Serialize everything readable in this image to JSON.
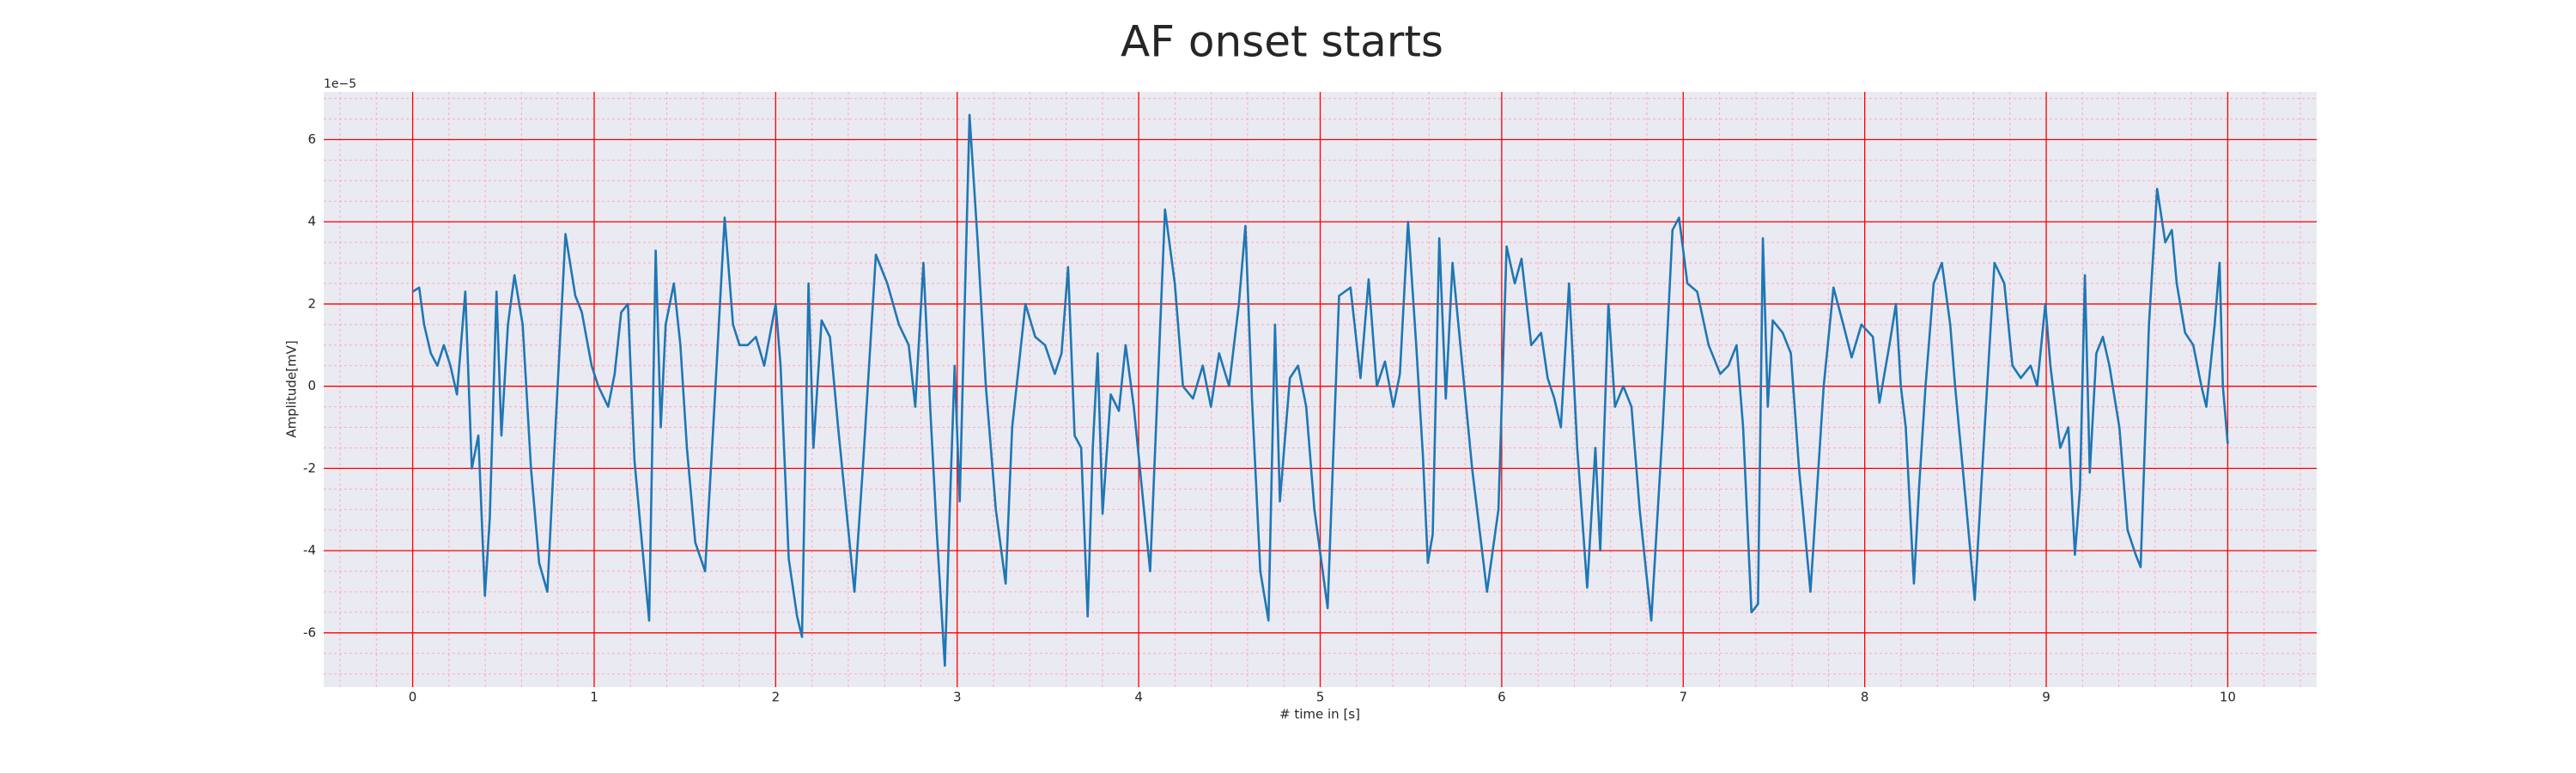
{
  "chart_data": {
    "type": "line",
    "title": "AF onset starts",
    "x_label": "# time in [s]",
    "y_label": "Amplitude[mV]",
    "y_offset_label": "1e−5",
    "xlim": [
      -0.49,
      10.49
    ],
    "ylim": [
      -7.32,
      7.16
    ],
    "xticks": [
      0,
      1,
      2,
      3,
      4,
      5,
      6,
      7,
      8,
      9,
      10
    ],
    "yticks": [
      -6,
      -4,
      -2,
      0,
      2,
      4,
      6
    ],
    "x_minor_ticks": [
      -0.4,
      -0.2,
      0,
      0.2,
      0.4,
      0.6,
      0.8,
      1,
      1.2,
      1.4,
      1.6,
      1.8,
      2,
      2.2,
      2.4,
      2.6,
      2.8,
      3,
      3.2,
      3.4,
      3.6,
      3.8,
      4,
      4.2,
      4.4,
      4.6,
      4.8,
      5,
      5.2,
      5.4,
      5.6,
      5.8,
      6,
      6.2,
      6.4,
      6.6,
      6.8,
      7,
      7.2,
      7.4,
      7.6,
      7.8,
      8,
      8.2,
      8.4,
      8.6,
      8.8,
      9,
      9.2,
      9.4,
      9.6,
      9.8,
      10,
      10.2,
      10.4
    ],
    "y_minor_ticks": [
      -7,
      -6.5,
      -6,
      -5.5,
      -5,
      -4.5,
      -4,
      -3.5,
      -3,
      -2.5,
      -2,
      -1.5,
      -1,
      -0.5,
      0,
      0.5,
      1,
      1.5,
      2,
      2.5,
      3,
      3.5,
      4,
      4.5,
      5,
      5.5,
      6,
      6.5,
      7
    ],
    "grid": true,
    "background": "#eaeaf2",
    "grid_color": "#ff0000",
    "minor_grid_color": "#ffaabb",
    "x": [
      0,
      0.036,
      0.063,
      0.1,
      0.136,
      0.172,
      0.208,
      0.244,
      0.29,
      0.326,
      0.362,
      0.398,
      0.425,
      0.462,
      0.489,
      0.525,
      0.561,
      0.606,
      0.652,
      0.697,
      0.742,
      0.787,
      0.842,
      0.896,
      0.932,
      0.986,
      1.023,
      1.077,
      1.113,
      1.149,
      1.186,
      1.222,
      1.267,
      1.303,
      1.339,
      1.367,
      1.394,
      1.439,
      1.475,
      1.511,
      1.557,
      1.611,
      1.656,
      1.719,
      1.765,
      1.801,
      1.846,
      1.891,
      1.937,
      2.0,
      2.027,
      2.072,
      2.118,
      2.145,
      2.181,
      2.208,
      2.253,
      2.299,
      2.344,
      2.389,
      2.434,
      2.48,
      2.552,
      2.615,
      2.679,
      2.733,
      2.769,
      2.814,
      2.851,
      2.887,
      2.932,
      2.959,
      2.986,
      3.014,
      3.068,
      3.113,
      3.158,
      3.213,
      3.267,
      3.303,
      3.376,
      3.43,
      3.484,
      3.538,
      3.575,
      3.611,
      3.647,
      3.683,
      3.719,
      3.747,
      3.774,
      3.801,
      3.846,
      3.891,
      3.928,
      3.973,
      4.018,
      4.063,
      4.145,
      4.199,
      4.244,
      4.299,
      4.353,
      4.398,
      4.443,
      4.498,
      4.552,
      4.588,
      4.624,
      4.67,
      4.715,
      4.751,
      4.778,
      4.833,
      4.878,
      4.923,
      4.968,
      5.041,
      5.104,
      5.167,
      5.222,
      5.267,
      5.312,
      5.357,
      5.403,
      5.439,
      5.484,
      5.529,
      5.566,
      5.593,
      5.62,
      5.656,
      5.692,
      5.729,
      5.783,
      5.837,
      5.919,
      5.982,
      6.027,
      6.072,
      6.109,
      6.163,
      6.217,
      6.253,
      6.29,
      6.326,
      6.371,
      6.416,
      6.471,
      6.516,
      6.543,
      6.588,
      6.624,
      6.67,
      6.715,
      6.76,
      6.824,
      6.887,
      6.941,
      6.977,
      7.023,
      7.077,
      7.14,
      7.204,
      7.249,
      7.294,
      7.33,
      7.376,
      7.412,
      7.439,
      7.466,
      7.493,
      7.548,
      7.593,
      7.638,
      7.701,
      7.774,
      7.828,
      7.882,
      7.928,
      7.982,
      8.045,
      8.081,
      8.136,
      8.172,
      8.199,
      8.226,
      8.271,
      8.299,
      8.335,
      8.38,
      8.425,
      8.471,
      8.498,
      8.561,
      8.606,
      8.661,
      8.715,
      8.769,
      8.814,
      8.86,
      8.914,
      8.95,
      8.995,
      9.023,
      9.077,
      9.122,
      9.158,
      9.186,
      9.213,
      9.24,
      9.276,
      9.312,
      9.348,
      9.403,
      9.448,
      9.493,
      9.52,
      9.566,
      9.611,
      9.656,
      9.692,
      9.719,
      9.765,
      9.81,
      9.855,
      9.882,
      9.928,
      9.955,
      9.973,
      10.0
    ],
    "series": [
      {
        "color": "#1f77b4",
        "values": [
          2.3,
          2.4,
          1.5,
          0.8,
          0.5,
          1.0,
          0.5,
          -0.2,
          2.3,
          -2.0,
          -1.2,
          -5.1,
          -3.2,
          2.3,
          -1.2,
          1.5,
          2.7,
          1.5,
          -2,
          -4.3,
          -5.0,
          -1,
          3.7,
          2.2,
          1.8,
          0.5,
          0.0,
          -0.5,
          0.3,
          1.8,
          2.0,
          -1.8,
          -4,
          -5.7,
          3.3,
          -1,
          1.5,
          2.5,
          1.0,
          -1.5,
          -3.8,
          -4.5,
          -1.0,
          4.1,
          1.5,
          1.0,
          1.0,
          1.2,
          0.5,
          2.0,
          0.5,
          -4.2,
          -5.6,
          -6.1,
          2.5,
          -1.5,
          1.6,
          1.2,
          -1,
          -3,
          -5.0,
          -2,
          3.2,
          2.5,
          1.5,
          1.0,
          -0.5,
          3.0,
          -0.5,
          -3.5,
          -6.8,
          -3,
          0.5,
          -2.8,
          6.6,
          3.5,
          0,
          -3,
          -4.8,
          -1,
          2.0,
          1.2,
          1.0,
          0.3,
          0.8,
          2.9,
          -1.2,
          -1.5,
          -5.6,
          -1.5,
          0.8,
          -3.1,
          -0.2,
          -0.6,
          1.0,
          -0.5,
          -2.5,
          -4.5,
          4.3,
          2.5,
          0.0,
          -0.3,
          0.5,
          -0.5,
          0.8,
          0.0,
          2.0,
          3.9,
          -0.3,
          -4.5,
          -5.7,
          1.5,
          -2.8,
          0.2,
          0.5,
          -0.5,
          -3,
          -5.4,
          2.2,
          2.4,
          0.2,
          2.6,
          0,
          0.6,
          -0.5,
          0.3,
          4.0,
          1.0,
          -1.7,
          -4.3,
          -3.6,
          3.6,
          -0.3,
          3.0,
          0.5,
          -2,
          -5.0,
          -3,
          3.4,
          2.5,
          3.1,
          1.0,
          1.3,
          0.2,
          -0.3,
          -1.0,
          2.5,
          -1.5,
          -4.9,
          -1.5,
          -4.0,
          2.0,
          -0.5,
          0.0,
          -0.5,
          -3,
          -5.7,
          -1,
          3.8,
          4.1,
          2.5,
          2.3,
          1.0,
          0.3,
          0.5,
          1.0,
          -1.0,
          -5.5,
          -5.3,
          3.6,
          -0.5,
          1.6,
          1.3,
          0.8,
          -2,
          -5.0,
          0,
          2.4,
          1.5,
          0.7,
          1.5,
          1.2,
          -0.4,
          1.0,
          2.0,
          0.0,
          -1.0,
          -4.8,
          -2.5,
          0,
          2.5,
          3.0,
          1.5,
          0,
          -3,
          -5.2,
          -1,
          3.0,
          2.5,
          0.5,
          0.2,
          0.5,
          0,
          2.0,
          0.5,
          -1.5,
          -1.0,
          -4.1,
          -2.5,
          2.7,
          -2.1,
          0.8,
          1.2,
          0.5,
          -1,
          -3.5,
          -4.1,
          -4.4,
          1.5,
          4.8,
          3.5,
          3.8,
          2.5,
          1.3,
          1.0,
          0,
          -0.5,
          1.5,
          3.0,
          0,
          -1.4
        ]
      }
    ]
  }
}
